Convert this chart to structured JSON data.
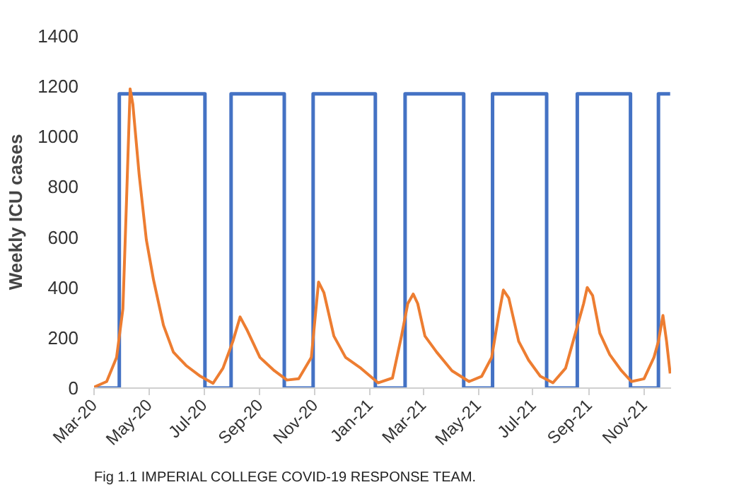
{
  "chart_data": {
    "type": "line",
    "ylabel": "Weekly ICU cases",
    "annotations": [
      "Fig 1.1 IMPERIAL COLLEGE COVID-19 RESPONSE TEAM."
    ],
    "xlim": [
      "2020-03-01",
      "2021-12-01"
    ],
    "ylim": [
      0,
      1400
    ],
    "yticks": [
      0,
      200,
      400,
      600,
      800,
      1000,
      1200,
      1400
    ],
    "xticks": [
      {
        "value": "2020-03-01",
        "label": "Mar-20"
      },
      {
        "value": "2020-05-01",
        "label": "May-20"
      },
      {
        "value": "2020-07-01",
        "label": "Jul-20"
      },
      {
        "value": "2020-09-01",
        "label": "Sep-20"
      },
      {
        "value": "2020-11-01",
        "label": "Nov-20"
      },
      {
        "value": "2021-01-01",
        "label": "Jan-21"
      },
      {
        "value": "2021-03-01",
        "label": "Mar-21"
      },
      {
        "value": "2021-05-01",
        "label": "May-21"
      },
      {
        "value": "2021-07-01",
        "label": "Jul-21"
      },
      {
        "value": "2021-09-01",
        "label": "Sep-21"
      },
      {
        "value": "2021-11-01",
        "label": "Nov-21"
      }
    ],
    "grid": false,
    "line_style": "solid",
    "series": [
      {
        "type": "step",
        "color": "#4472c4",
        "x": [
          "2020-03-01",
          "2020-03-29",
          "2020-07-02",
          "2020-07-31",
          "2020-09-28",
          "2020-10-30",
          "2021-01-07",
          "2021-02-09",
          "2021-04-15",
          "2021-05-17",
          "2021-07-16",
          "2021-08-19",
          "2021-10-17",
          "2021-11-17",
          "2021-11-30"
        ],
        "values": [
          0,
          1170,
          0,
          1170,
          0,
          1170,
          0,
          1170,
          0,
          1170,
          0,
          1170,
          0,
          1170,
          1170
        ]
      },
      {
        "color": "#ed7d31",
        "x": [
          "2020-03-01",
          "2020-03-15",
          "2020-03-26",
          "2020-04-02",
          "2020-04-06",
          "2020-04-10",
          "2020-04-13",
          "2020-04-20",
          "2020-04-28",
          "2020-05-06",
          "2020-05-17",
          "2020-05-28",
          "2020-06-11",
          "2020-06-27",
          "2020-07-11",
          "2020-07-22",
          "2020-08-02",
          "2020-08-10",
          "2020-08-18",
          "2020-09-01",
          "2020-09-17",
          "2020-10-01",
          "2020-10-14",
          "2020-10-28",
          "2020-11-05",
          "2020-11-11",
          "2020-11-22",
          "2020-12-05",
          "2020-12-22",
          "2021-01-07",
          "2021-01-10",
          "2021-01-26",
          "2021-02-05",
          "2021-02-12",
          "2021-02-18",
          "2021-02-23",
          "2021-03-03",
          "2021-03-16",
          "2021-04-02",
          "2021-04-21",
          "2021-05-05",
          "2021-05-16",
          "2021-05-24",
          "2021-05-29",
          "2021-06-04",
          "2021-06-15",
          "2021-06-26",
          "2021-07-09",
          "2021-07-23",
          "2021-08-06",
          "2021-08-16",
          "2021-08-26",
          "2021-08-30",
          "2021-09-05",
          "2021-09-13",
          "2021-09-24",
          "2021-10-07",
          "2021-10-18",
          "2021-11-01",
          "2021-11-12",
          "2021-11-17",
          "2021-11-22",
          "2021-11-26",
          "2021-11-30"
        ],
        "values": [
          4,
          26,
          122,
          315,
          744,
          1190,
          1130,
          850,
          590,
          430,
          250,
          143,
          90,
          47,
          19,
          79,
          186,
          283,
          229,
          122,
          69,
          32,
          37,
          122,
          422,
          379,
          207,
          122,
          79,
          30,
          21,
          40,
          207,
          336,
          374,
          336,
          207,
          143,
          69,
          26,
          47,
          122,
          293,
          390,
          358,
          186,
          111,
          47,
          21,
          79,
          207,
          336,
          400,
          368,
          218,
          133,
          69,
          26,
          37,
          122,
          186,
          289,
          186,
          58
        ]
      }
    ]
  }
}
